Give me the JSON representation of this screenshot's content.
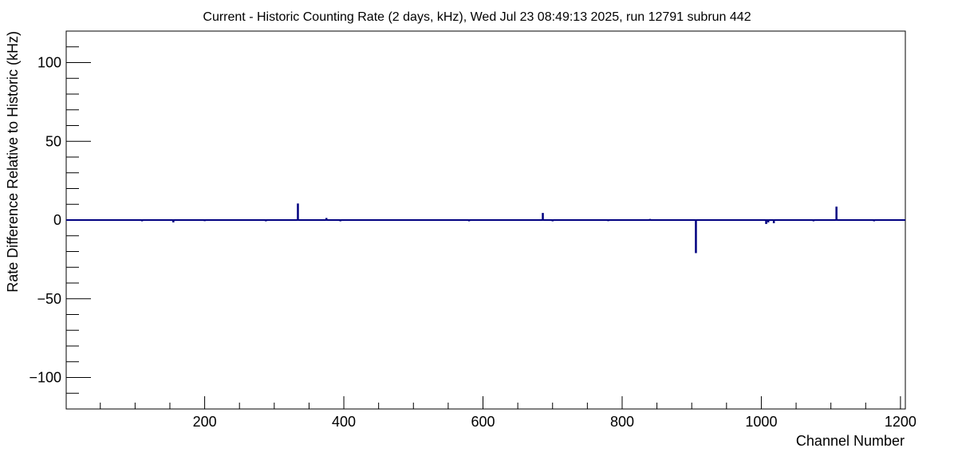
{
  "chart_data": {
    "type": "bar",
    "title": "Current - Historic Counting Rate (2 days, kHz), Wed Jul 23 08:49:13 2025, run 12791 subrun 442",
    "xlabel": "Channel Number",
    "ylabel": "Rate Difference Relative to Historic (kHz)",
    "xlim": [
      1,
      1207
    ],
    "ylim": [
      -120,
      120
    ],
    "x_ticks": [
      200,
      400,
      600,
      800,
      1000,
      1200
    ],
    "x_tick_labels": [
      "200",
      "400",
      "600",
      "800",
      "1000",
      "1200"
    ],
    "y_ticks": [
      -100,
      -50,
      0,
      50,
      100
    ],
    "y_tick_labels": [
      "−100",
      "−50",
      "0",
      "50",
      "100"
    ],
    "grid": false,
    "legend": "none",
    "line_color": "#000080",
    "series": [
      {
        "x": [
          110,
          155,
          200,
          288,
          334,
          375,
          395,
          580,
          686,
          700,
          780,
          840,
          906,
          1007,
          1010,
          1018,
          1075,
          1108,
          1162
        ],
        "values": [
          -0.8,
          -1.5,
          -0.7,
          -0.8,
          10.5,
          1.3,
          -0.8,
          -0.8,
          4.5,
          -0.8,
          -0.7,
          0.7,
          -21,
          -2.5,
          -1.5,
          -2,
          -0.8,
          8.5,
          -0.8
        ]
      }
    ]
  }
}
